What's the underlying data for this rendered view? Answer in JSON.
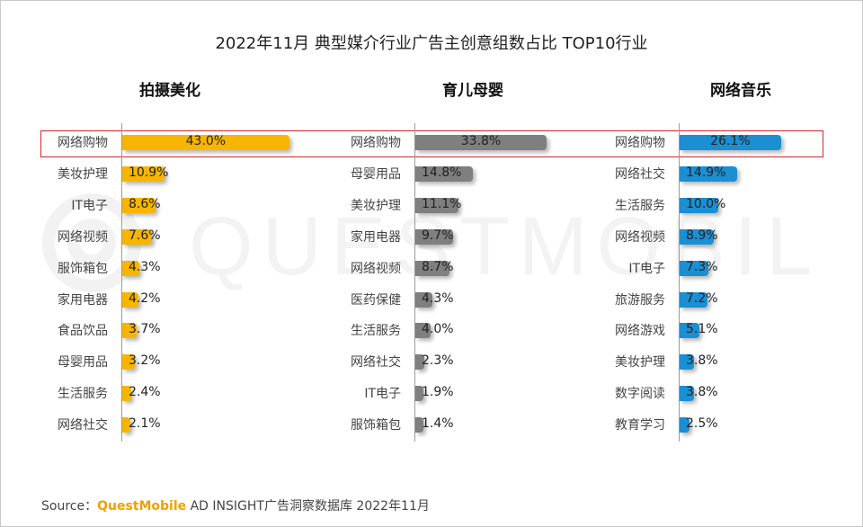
{
  "chart_data": {
    "type": "bar",
    "title": "2022年11月 典型媒介行业广告主创意组数占比 TOP10行业",
    "watermark": "QUESTMOBILE",
    "panels": [
      {
        "name": "拍摄美化",
        "color": "#f7b500",
        "categories": [
          "网络购物",
          "美妆护理",
          "IT电子",
          "网络视频",
          "服饰箱包",
          "家用电器",
          "食品饮品",
          "母婴用品",
          "生活服务",
          "网络社交"
        ],
        "values": [
          43.0,
          10.9,
          8.6,
          7.6,
          4.3,
          4.2,
          3.7,
          3.2,
          2.4,
          2.1
        ],
        "labels": [
          "43.0%",
          "10.9%",
          "8.6%",
          "7.6%",
          "4.3%",
          "4.2%",
          "3.7%",
          "3.2%",
          "2.4%",
          "2.1%"
        ]
      },
      {
        "name": "育儿母婴",
        "color": "#7f7f7f",
        "categories": [
          "网络购物",
          "母婴用品",
          "美妆护理",
          "家用电器",
          "网络视频",
          "医药保健",
          "生活服务",
          "网络社交",
          "IT电子",
          "服饰箱包"
        ],
        "values": [
          33.8,
          14.8,
          11.1,
          9.7,
          8.7,
          4.3,
          4.0,
          2.3,
          1.9,
          1.4
        ],
        "labels": [
          "33.8%",
          "14.8%",
          "11.1%",
          "9.7%",
          "8.7%",
          "4.3%",
          "4.0%",
          "2.3%",
          "1.9%",
          "1.4%"
        ]
      },
      {
        "name": "网络音乐",
        "color": "#1a8fd3",
        "categories": [
          "网络购物",
          "网络社交",
          "生活服务",
          "网络视频",
          "IT电子",
          "旅游服务",
          "网络游戏",
          "美妆护理",
          "数字阅读",
          "教育学习"
        ],
        "values": [
          26.1,
          14.9,
          10.0,
          8.9,
          7.3,
          7.2,
          5.1,
          3.8,
          3.8,
          2.5
        ],
        "labels": [
          "26.1%",
          "14.9%",
          "10.0%",
          "8.9%",
          "7.3%",
          "7.2%",
          "5.1%",
          "3.8%",
          "3.8%",
          "2.5%"
        ]
      }
    ]
  },
  "source": {
    "prefix": "Source：",
    "brand": "QuestMobile",
    "rest": " AD INSIGHT广告洞察数据库 2022年11月"
  }
}
